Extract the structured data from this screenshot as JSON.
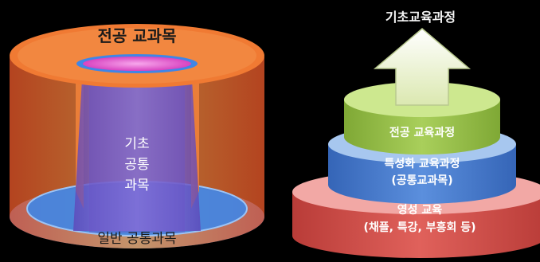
{
  "left_diagram": {
    "outer_label": "전공 교과목",
    "core_label_lines": [
      "기초",
      "공통",
      "과목"
    ],
    "base_label": "일반 공통과목",
    "colors": {
      "outer_top": "#f07a33",
      "outer_side": "#f39a3f",
      "core": "#7a62cf",
      "core_top": "#e23dc8",
      "base": "#3f86e7",
      "base_ring": "#6aa7f1"
    }
  },
  "right_diagram": {
    "title": "기초교육과정",
    "tiers": [
      {
        "id": "major",
        "lines": [
          "전공 교육과정"
        ],
        "color": "#9dc24a",
        "top": "#cde88f"
      },
      {
        "id": "specialized",
        "lines": [
          "특성화 교육과정",
          "(공통교과목)"
        ],
        "color": "#4d7fd0",
        "top": "#a7c7ef"
      },
      {
        "id": "spiritual",
        "lines": [
          "영성 교육",
          "(채플, 특강, 부흥회 등)"
        ],
        "color": "#d85550",
        "top": "#f2a8a5"
      }
    ],
    "arrow_color": "#e9f1c8"
  }
}
